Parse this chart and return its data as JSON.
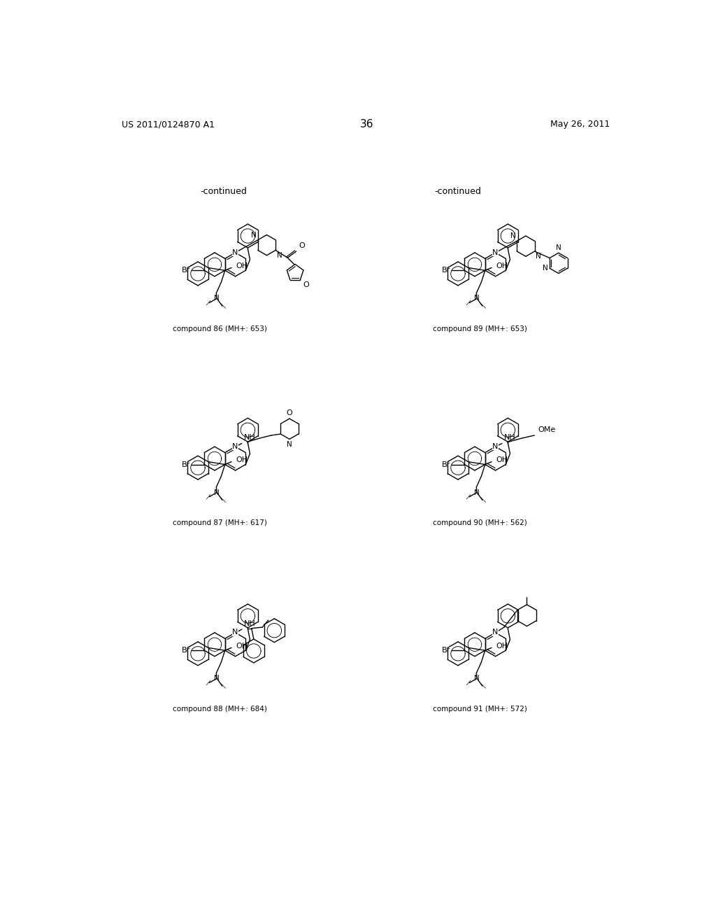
{
  "title_left": "US 2011/0124870 A1",
  "title_right": "May 26, 2011",
  "page_number": "36",
  "bg": "#ffffff",
  "labels": {
    "86": "compound 86 (MH+: 653)",
    "87": "compound 87 (MH+: 617)",
    "88": "compound 88 (MH+: 684)",
    "89": "compound 89 (MH+: 653)",
    "90": "compound 90 (MH+: 562)",
    "91": "compound 91 (MH+: 572)"
  }
}
